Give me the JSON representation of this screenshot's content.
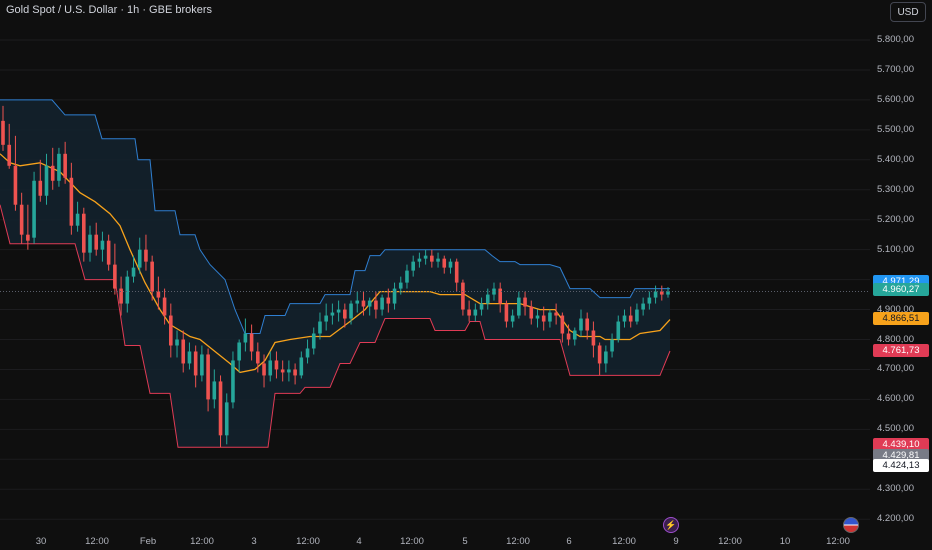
{
  "header": {
    "title": "Gold Spot / U.S. Dollar · 1h · GBE brokers",
    "currency": "USD"
  },
  "colors": {
    "bull": "#26a69a",
    "bear": "#ef5350",
    "upper": "#2f7fd1",
    "lower": "#e03b55",
    "mid": "#f7a21b",
    "fill": "#13222e"
  },
  "chart_data": {
    "type": "candlestick",
    "y_ticks": [
      "5.800,00",
      "5.700,00",
      "5.600,00",
      "5.500,00",
      "5.400,00",
      "5.300,00",
      "5.200,00",
      "5.100,00",
      "5.000,00",
      "4.900,00",
      "4.800,00",
      "4.700,00",
      "4.600,00",
      "4.500,00",
      "4.400,00",
      "4.300,00",
      "4.200,00"
    ],
    "x_ticks": [
      "30",
      "12:00",
      "Feb",
      "12:00",
      "3",
      "12:00",
      "4",
      "12:00",
      "5",
      "12:00",
      "6",
      "12:00",
      "9",
      "12:00",
      "10",
      "12:00"
    ],
    "price_labels": [
      {
        "text": "4.971,29",
        "bg": "#2196f3",
        "fg": "#ffffff",
        "value": 4971.29
      },
      {
        "text": "4.960,27",
        "bg": "#26a69a",
        "fg": "#ffffff",
        "value": 4960.27
      },
      {
        "text": "4.866,51",
        "bg": "#f7a21b",
        "fg": "#131722",
        "value": 4866.51
      },
      {
        "text": "4.761,73",
        "bg": "#e03b55",
        "fg": "#ffffff",
        "value": 4761.73
      },
      {
        "text": "4.439,10",
        "bg": "#e03b55",
        "fg": "#ffffff",
        "value": 4439.1
      },
      {
        "text": "4.429,81",
        "bg": "#787b86",
        "fg": "#ffffff",
        "value": 4429.81
      },
      {
        "text": "4.424,13",
        "bg": "#ffffff",
        "fg": "#131722",
        "value": 4424.13
      }
    ],
    "upper_band": [
      [
        0,
        5600
      ],
      [
        52,
        5600
      ],
      [
        65,
        5550
      ],
      [
        95,
        5550
      ],
      [
        102,
        5470
      ],
      [
        135,
        5470
      ],
      [
        138,
        5400
      ],
      [
        150,
        5400
      ],
      [
        155,
        5230
      ],
      [
        175,
        5230
      ],
      [
        180,
        5150
      ],
      [
        195,
        5150
      ],
      [
        200,
        5100
      ],
      [
        210,
        5050
      ],
      [
        225,
        5000
      ],
      [
        235,
        4900
      ],
      [
        245,
        4820
      ],
      [
        260,
        4820
      ],
      [
        265,
        4880
      ],
      [
        285,
        4880
      ],
      [
        290,
        4920
      ],
      [
        320,
        4920
      ],
      [
        325,
        4950
      ],
      [
        350,
        4950
      ],
      [
        355,
        5030
      ],
      [
        365,
        5030
      ],
      [
        370,
        5080
      ],
      [
        380,
        5080
      ],
      [
        385,
        5100
      ],
      [
        485,
        5100
      ],
      [
        492,
        5080
      ],
      [
        500,
        5060
      ],
      [
        515,
        5060
      ],
      [
        520,
        5050
      ],
      [
        550,
        5050
      ],
      [
        560,
        5040
      ],
      [
        570,
        4970
      ],
      [
        590,
        4970
      ],
      [
        600,
        4940
      ],
      [
        630,
        4940
      ],
      [
        635,
        4970
      ],
      [
        670,
        4970
      ]
    ],
    "mid_line": [
      [
        0,
        5420
      ],
      [
        10,
        5390
      ],
      [
        20,
        5380
      ],
      [
        40,
        5390
      ],
      [
        60,
        5360
      ],
      [
        80,
        5290
      ],
      [
        95,
        5260
      ],
      [
        110,
        5220
      ],
      [
        120,
        5180
      ],
      [
        130,
        5100
      ],
      [
        145,
        4990
      ],
      [
        160,
        4900
      ],
      [
        170,
        4850
      ],
      [
        180,
        4830
      ],
      [
        190,
        4810
      ],
      [
        200,
        4800
      ],
      [
        215,
        4760
      ],
      [
        230,
        4720
      ],
      [
        240,
        4690
      ],
      [
        255,
        4700
      ],
      [
        265,
        4730
      ],
      [
        275,
        4790
      ],
      [
        290,
        4800
      ],
      [
        310,
        4810
      ],
      [
        330,
        4810
      ],
      [
        350,
        4860
      ],
      [
        365,
        4900
      ],
      [
        380,
        4960
      ],
      [
        400,
        4960
      ],
      [
        430,
        4960
      ],
      [
        440,
        4950
      ],
      [
        465,
        4950
      ],
      [
        480,
        4920
      ],
      [
        500,
        4920
      ],
      [
        520,
        4920
      ],
      [
        540,
        4900
      ],
      [
        555,
        4900
      ],
      [
        570,
        4830
      ],
      [
        580,
        4810
      ],
      [
        600,
        4810
      ],
      [
        605,
        4800
      ],
      [
        630,
        4800
      ],
      [
        640,
        4820
      ],
      [
        660,
        4830
      ],
      [
        670,
        4866.51
      ]
    ],
    "lower_band": [
      [
        0,
        5250
      ],
      [
        10,
        5120
      ],
      [
        75,
        5120
      ],
      [
        85,
        5000
      ],
      [
        115,
        5000
      ],
      [
        125,
        4780
      ],
      [
        140,
        4780
      ],
      [
        150,
        4620
      ],
      [
        170,
        4620
      ],
      [
        178,
        4440
      ],
      [
        268,
        4440
      ],
      [
        275,
        4620
      ],
      [
        300,
        4620
      ],
      [
        305,
        4640
      ],
      [
        330,
        4640
      ],
      [
        340,
        4720
      ],
      [
        350,
        4720
      ],
      [
        360,
        4790
      ],
      [
        375,
        4790
      ],
      [
        385,
        4870
      ],
      [
        430,
        4870
      ],
      [
        435,
        4830
      ],
      [
        465,
        4830
      ],
      [
        470,
        4860
      ],
      [
        480,
        4860
      ],
      [
        485,
        4800
      ],
      [
        560,
        4800
      ],
      [
        570,
        4680
      ],
      [
        660,
        4680
      ],
      [
        670,
        4761.73
      ]
    ],
    "candles": [
      [
        5530,
        5580,
        5450,
        5430
      ],
      [
        5450,
        5520,
        5380,
        5370
      ],
      [
        5380,
        5480,
        5250,
        5230
      ],
      [
        5250,
        5290,
        5150,
        5120
      ],
      [
        5150,
        5250,
        5130,
        5100
      ],
      [
        5140,
        5360,
        5330,
        5120
      ],
      [
        5330,
        5400,
        5280,
        5260
      ],
      [
        5280,
        5420,
        5380,
        5250
      ],
      [
        5380,
        5440,
        5330,
        5300
      ],
      [
        5330,
        5440,
        5420,
        5310
      ],
      [
        5420,
        5460,
        5340,
        5320
      ],
      [
        5340,
        5390,
        5180,
        5150
      ],
      [
        5180,
        5260,
        5220,
        5160
      ],
      [
        5220,
        5240,
        5090,
        5060
      ],
      [
        5090,
        5180,
        5150,
        5060
      ],
      [
        5150,
        5190,
        5100,
        5080
      ],
      [
        5100,
        5160,
        5130,
        5060
      ],
      [
        5130,
        5150,
        5050,
        5030
      ],
      [
        5050,
        5120,
        4970,
        4950
      ],
      [
        4970,
        5010,
        4920,
        4880
      ],
      [
        4920,
        5030,
        5010,
        4890
      ],
      [
        5010,
        5080,
        5040,
        4990
      ],
      [
        5040,
        5140,
        5100,
        5020
      ],
      [
        5100,
        5150,
        5060,
        5030
      ],
      [
        5060,
        5080,
        4960,
        4930
      ],
      [
        4960,
        5010,
        4940,
        4900
      ],
      [
        4940,
        4970,
        4880,
        4850
      ],
      [
        4880,
        4920,
        4780,
        4740
      ],
      [
        4780,
        4830,
        4800,
        4740
      ],
      [
        4800,
        4830,
        4720,
        4690
      ],
      [
        4720,
        4790,
        4760,
        4700
      ],
      [
        4760,
        4780,
        4680,
        4640
      ],
      [
        4680,
        4780,
        4750,
        4660
      ],
      [
        4750,
        4770,
        4600,
        4560
      ],
      [
        4600,
        4700,
        4660,
        4570
      ],
      [
        4660,
        4680,
        4480,
        4440
      ],
      [
        4480,
        4620,
        4590,
        4450
      ],
      [
        4590,
        4760,
        4730,
        4570
      ],
      [
        4730,
        4800,
        4790,
        4690
      ],
      [
        4790,
        4870,
        4820,
        4760
      ],
      [
        4820,
        4850,
        4760,
        4730
      ],
      [
        4760,
        4790,
        4720,
        4690
      ],
      [
        4720,
        4750,
        4680,
        4640
      ],
      [
        4680,
        4760,
        4730,
        4660
      ],
      [
        4730,
        4760,
        4700,
        4670
      ],
      [
        4700,
        4730,
        4690,
        4660
      ],
      [
        4690,
        4730,
        4700,
        4660
      ],
      [
        4700,
        4720,
        4680,
        4650
      ],
      [
        4680,
        4760,
        4740,
        4670
      ],
      [
        4740,
        4800,
        4770,
        4720
      ],
      [
        4770,
        4840,
        4820,
        4750
      ],
      [
        4820,
        4890,
        4860,
        4800
      ],
      [
        4860,
        4920,
        4880,
        4830
      ],
      [
        4880,
        4920,
        4890,
        4850
      ],
      [
        4890,
        4930,
        4900,
        4860
      ],
      [
        4900,
        4920,
        4870,
        4840
      ],
      [
        4870,
        4930,
        4920,
        4850
      ],
      [
        4920,
        4960,
        4930,
        4890
      ],
      [
        4930,
        4960,
        4910,
        4880
      ],
      [
        4910,
        4940,
        4930,
        4880
      ],
      [
        4930,
        4960,
        4900,
        4870
      ],
      [
        4900,
        4950,
        4940,
        4880
      ],
      [
        4940,
        4970,
        4920,
        4890
      ],
      [
        4920,
        4990,
        4970,
        4900
      ],
      [
        4970,
        5010,
        4990,
        4950
      ],
      [
        4990,
        5050,
        5030,
        4970
      ],
      [
        5030,
        5080,
        5060,
        5010
      ],
      [
        5060,
        5090,
        5070,
        5040
      ],
      [
        5070,
        5100,
        5080,
        5050
      ],
      [
        5080,
        5100,
        5060,
        5040
      ],
      [
        5060,
        5090,
        5070,
        5040
      ],
      [
        5070,
        5080,
        5040,
        5020
      ],
      [
        5040,
        5070,
        5060,
        5020
      ],
      [
        5060,
        5070,
        4990,
        4960
      ],
      [
        4990,
        5000,
        4900,
        4880
      ],
      [
        4900,
        4930,
        4880,
        4860
      ],
      [
        4880,
        4920,
        4900,
        4860
      ],
      [
        4900,
        4940,
        4920,
        4880
      ],
      [
        4920,
        4970,
        4950,
        4900
      ],
      [
        4950,
        4990,
        4970,
        4930
      ],
      [
        4970,
        4990,
        4920,
        4890
      ],
      [
        4920,
        4930,
        4860,
        4840
      ],
      [
        4860,
        4900,
        4880,
        4840
      ],
      [
        4880,
        4960,
        4940,
        4870
      ],
      [
        4940,
        4960,
        4910,
        4880
      ],
      [
        4910,
        4930,
        4870,
        4850
      ],
      [
        4870,
        4900,
        4880,
        4840
      ],
      [
        4880,
        4910,
        4860,
        4830
      ],
      [
        4860,
        4900,
        4890,
        4840
      ],
      [
        4890,
        4920,
        4880,
        4850
      ],
      [
        4880,
        4890,
        4820,
        4790
      ],
      [
        4820,
        4850,
        4800,
        4780
      ],
      [
        4800,
        4840,
        4830,
        4780
      ],
      [
        4830,
        4900,
        4870,
        4810
      ],
      [
        4870,
        4890,
        4830,
        4800
      ],
      [
        4830,
        4860,
        4780,
        4740
      ],
      [
        4780,
        4790,
        4720,
        4680
      ],
      [
        4720,
        4780,
        4760,
        4690
      ],
      [
        4760,
        4820,
        4800,
        4740
      ],
      [
        4800,
        4880,
        4860,
        4790
      ],
      [
        4860,
        4900,
        4880,
        4840
      ],
      [
        4880,
        4910,
        4860,
        4840
      ],
      [
        4860,
        4920,
        4900,
        4850
      ],
      [
        4900,
        4940,
        4920,
        4880
      ],
      [
        4920,
        4960,
        4940,
        4900
      ],
      [
        4940,
        4980,
        4960,
        4920
      ],
      [
        4960,
        4980,
        4950,
        4930
      ],
      [
        4950,
        4975,
        4960,
        4940
      ]
    ]
  }
}
